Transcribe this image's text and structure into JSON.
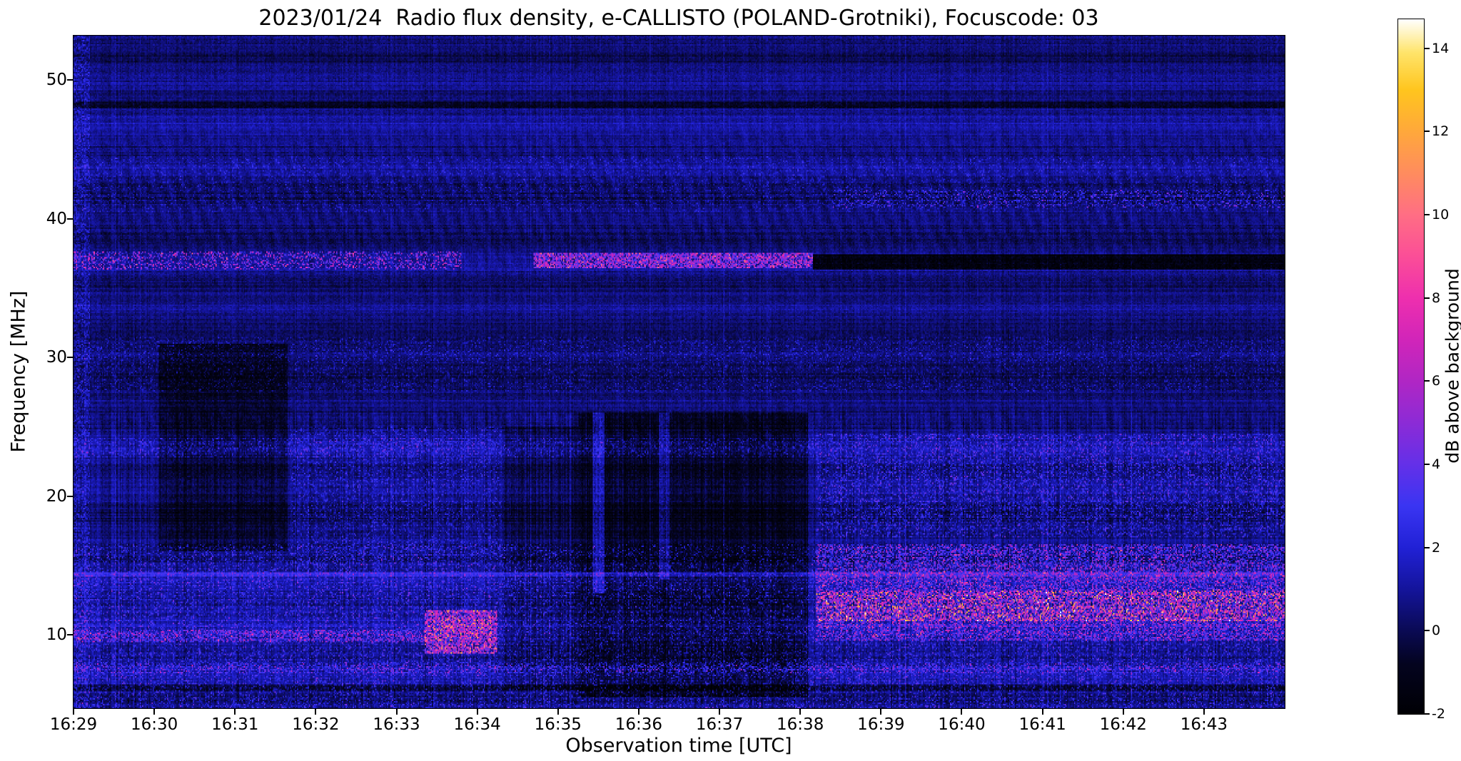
{
  "chart_data": {
    "type": "heatmap",
    "title": "2023/01/24  Radio flux density, e-CALLISTO (POLAND-Grotniki), Focuscode: 03",
    "xlabel": "Observation time [UTC]",
    "ylabel": "Frequency [MHz]",
    "colorbar_label": "dB above background",
    "x_ticks": [
      {
        "label": "16:29",
        "minute": 0
      },
      {
        "label": "16:30",
        "minute": 1
      },
      {
        "label": "16:31",
        "minute": 2
      },
      {
        "label": "16:32",
        "minute": 3
      },
      {
        "label": "16:33",
        "minute": 4
      },
      {
        "label": "16:34",
        "minute": 5
      },
      {
        "label": "16:35",
        "minute": 6
      },
      {
        "label": "16:36",
        "minute": 7
      },
      {
        "label": "16:37",
        "minute": 8
      },
      {
        "label": "16:38",
        "minute": 9
      },
      {
        "label": "16:39",
        "minute": 10
      },
      {
        "label": "16:40",
        "minute": 11
      },
      {
        "label": "16:41",
        "minute": 12
      },
      {
        "label": "16:42",
        "minute": 13
      },
      {
        "label": "16:43",
        "minute": 14
      }
    ],
    "x_range_minutes": [
      0,
      15
    ],
    "y_ticks": [
      10,
      20,
      30,
      40,
      50
    ],
    "ylim": [
      4.7,
      53.2
    ],
    "clim": [
      -2,
      14.7
    ],
    "colorbar_ticks": [
      -2,
      0,
      2,
      4,
      6,
      8,
      10,
      12,
      14
    ],
    "colormap": "gnuplot2-like (black-blue-violet-magenta-orange-yellow-white)",
    "colormap_stops": [
      {
        "v": -2.0,
        "c": "#000004"
      },
      {
        "v": -0.8,
        "c": "#04041f"
      },
      {
        "v": 0.0,
        "c": "#0a0a54"
      },
      {
        "v": 1.0,
        "c": "#14149b"
      },
      {
        "v": 2.0,
        "c": "#2121d6"
      },
      {
        "v": 3.0,
        "c": "#3a35f2"
      },
      {
        "v": 4.0,
        "c": "#6430e8"
      },
      {
        "v": 5.0,
        "c": "#8c2bd6"
      },
      {
        "v": 6.0,
        "c": "#b026c4"
      },
      {
        "v": 7.0,
        "c": "#d125b9"
      },
      {
        "v": 8.0,
        "c": "#ee2fae"
      },
      {
        "v": 9.0,
        "c": "#fb4e97"
      },
      {
        "v": 10.0,
        "c": "#ff6e84"
      },
      {
        "v": 11.0,
        "c": "#ff8c5e"
      },
      {
        "v": 12.0,
        "c": "#ffa83b"
      },
      {
        "v": 13.0,
        "c": "#ffc51e"
      },
      {
        "v": 13.9,
        "c": "#ffe46a"
      },
      {
        "v": 14.7,
        "c": "#ffffff"
      }
    ],
    "noise_seed": 20230124,
    "features": [
      {
        "name": "narrowband-37MHz-left",
        "type": "speckle",
        "t": [
          0,
          4.8
        ],
        "f": [
          36.3,
          37.6
        ],
        "p": 0.3,
        "amp": 7.5
      },
      {
        "name": "narrowband-37MHz-mid",
        "type": "speckle",
        "t": [
          5.7,
          9.15
        ],
        "f": [
          36.4,
          37.5
        ],
        "p": 0.75,
        "amp": 8.5
      },
      {
        "name": "narrowband-37MHz-absorbed-right",
        "type": "rect",
        "t": [
          9.15,
          15
        ],
        "f": [
          36.3,
          37.4
        ],
        "amp": -2.4
      },
      {
        "name": "dark-patch-1630",
        "type": "rect",
        "t": [
          1.05,
          2.65
        ],
        "f": [
          16,
          31
        ],
        "amp": -1.15
      },
      {
        "name": "dark-patch-1634",
        "type": "rect",
        "t": [
          5.35,
          6.25
        ],
        "f": [
          6,
          25
        ],
        "amp": -0.8
      },
      {
        "name": "dark-patch-1635-1638",
        "type": "rect",
        "t": [
          6.25,
          9.1
        ],
        "f": [
          5.5,
          26
        ],
        "amp": -1.5
      },
      {
        "name": "hf-ionospheric-activity",
        "type": "speckle",
        "t": [
          0,
          15
        ],
        "f": [
          4.7,
          16.5
        ],
        "p": 0.22,
        "amp": 3.2
      },
      {
        "name": "burst-1634-10MHz",
        "type": "speckle",
        "t": [
          4.35,
          5.25
        ],
        "f": [
          8.6,
          11.8
        ],
        "p": 0.75,
        "amp": 9.5
      },
      {
        "name": "row-10MHz-left",
        "type": "speckle",
        "t": [
          0,
          4.4
        ],
        "f": [
          9.4,
          10.4
        ],
        "p": 0.45,
        "amp": 5.5
      },
      {
        "name": "strong-band-right-10-16MHz",
        "type": "speckle",
        "t": [
          9.2,
          15
        ],
        "f": [
          9.5,
          16.5
        ],
        "p": 0.4,
        "amp": 6.0
      },
      {
        "name": "yellow-rows-right-11-13MHz",
        "type": "speckle",
        "t": [
          9.2,
          15
        ],
        "f": [
          11.0,
          13.2
        ],
        "p": 0.45,
        "amp": 9.0
      },
      {
        "name": "band-right-17-24MHz",
        "type": "speckle",
        "t": [
          9.2,
          15
        ],
        "f": [
          17,
          24.5
        ],
        "p": 0.28,
        "amp": 3.4
      },
      {
        "name": "speckles-right-41MHz",
        "type": "speckle",
        "t": [
          9.4,
          15
        ],
        "f": [
          40.8,
          42.1
        ],
        "p": 0.22,
        "amp": 4.2
      },
      {
        "name": "band-41-44",
        "type": "speckle",
        "t": [
          0,
          15
        ],
        "f": [
          40.5,
          44.5
        ],
        "p": 0.15,
        "amp": 2.0
      },
      {
        "name": "band-28-31-wavy",
        "type": "speckle",
        "t": [
          0,
          15
        ],
        "f": [
          27.5,
          31.5
        ],
        "p": 0.18,
        "amp": 2.2
      },
      {
        "name": "band-23-24-left",
        "type": "speckle",
        "t": [
          0,
          9.2
        ],
        "f": [
          22.8,
          24.2
        ],
        "p": 0.25,
        "amp": 2.6
      },
      {
        "name": "mid-activity-1632-1634",
        "type": "speckle",
        "t": [
          2.7,
          5.3
        ],
        "f": [
          15,
          25
        ],
        "p": 0.2,
        "amp": 2.5
      },
      {
        "name": "line-14MHz",
        "type": "rect",
        "t": [
          0,
          15
        ],
        "f": [
          14.2,
          14.55
        ],
        "amp": 1.7
      },
      {
        "name": "dark-row-48MHz",
        "type": "rect",
        "t": [
          0,
          15
        ],
        "f": [
          47.9,
          48.5
        ],
        "amp": -1.5
      },
      {
        "name": "bright-row-7.5MHz",
        "type": "speckle",
        "t": [
          0,
          15
        ],
        "f": [
          7.2,
          7.9
        ],
        "p": 0.35,
        "amp": 4.0
      },
      {
        "name": "dark-row-6MHz",
        "type": "rect",
        "t": [
          0,
          15
        ],
        "f": [
          5.9,
          6.4
        ],
        "amp": -1.0
      },
      {
        "name": "streak-1635.5",
        "type": "rect",
        "t": [
          6.43,
          6.58
        ],
        "f": [
          13,
          26
        ],
        "amp": 2.2
      },
      {
        "name": "streak-1636.3",
        "type": "rect",
        "t": [
          7.25,
          7.38
        ],
        "f": [
          14,
          26
        ],
        "amp": 1.8
      },
      {
        "name": "left-edge-columns",
        "type": "speckle",
        "t": [
          0,
          0.2
        ],
        "f": [
          4.7,
          53.2
        ],
        "p": 0.5,
        "amp": 2.2
      }
    ]
  }
}
